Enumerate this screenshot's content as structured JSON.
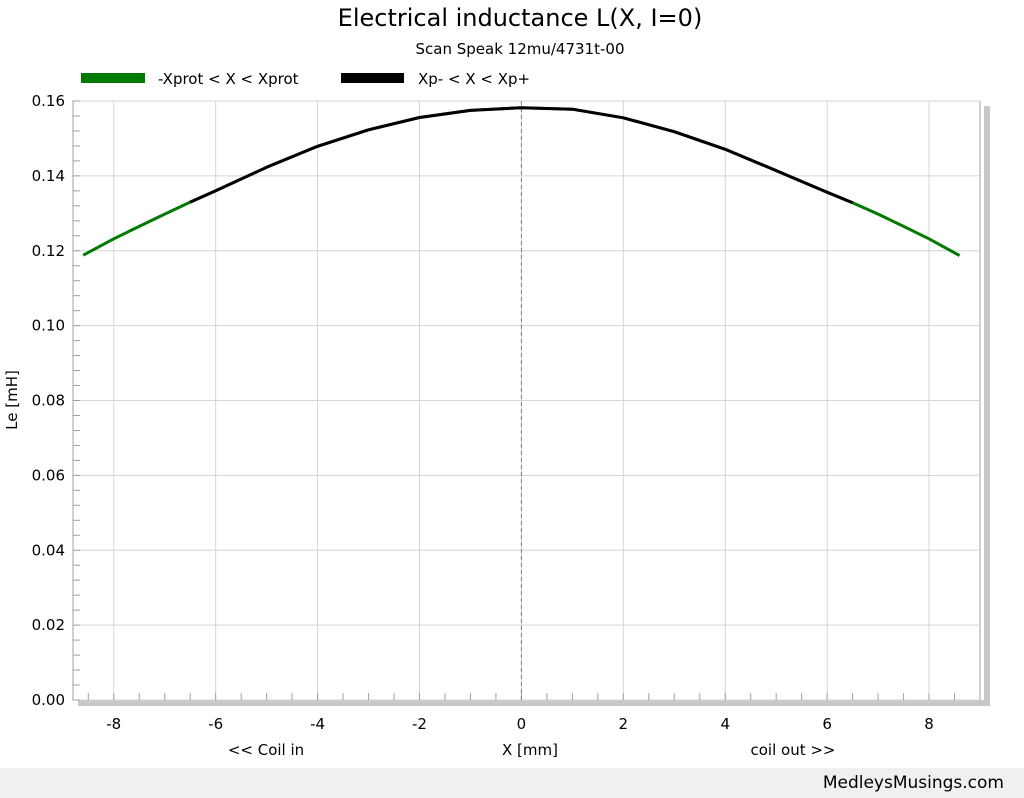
{
  "chart_data": {
    "type": "line",
    "title": "Electrical inductance L(X, I=0)",
    "subtitle": "Scan Speak 12mu/4731t-00",
    "xlabel": "X [mm]",
    "ylabel": "Le [mH]",
    "x_left_note": "<< Coil in",
    "x_right_note": "coil out >>",
    "xlim": [
      -8.8,
      9.0
    ],
    "ylim": [
      0,
      0.16
    ],
    "x_ticks": [
      -8,
      -6,
      -4,
      -2,
      0,
      2,
      4,
      6,
      8
    ],
    "x_tick_labels": [
      "-8",
      "-6",
      "-4",
      "-2",
      "0",
      "2",
      "4",
      "6",
      "8"
    ],
    "y_ticks": [
      0,
      0.02,
      0.04,
      0.06,
      0.08,
      0.1,
      0.12,
      0.14,
      0.16
    ],
    "y_tick_labels": [
      "0.00",
      "0.02",
      "0.04",
      "0.06",
      "0.08",
      "0.10",
      "0.12",
      "0.14",
      "0.16"
    ],
    "grid": true,
    "zero_line": true,
    "legend_position": "top-left",
    "series": [
      {
        "name": "-Xprot < X < Xprot",
        "color": "#007a00",
        "x": [
          -8.6,
          -8.0,
          -7.5,
          -7.0,
          -6.5,
          -6.0,
          -5.0,
          -4.0,
          -3.0,
          -2.0,
          -1.0,
          0.0,
          1.0,
          2.0,
          3.0,
          4.0,
          5.0,
          6.0,
          6.5,
          7.0,
          7.5,
          8.0,
          8.6
        ],
        "y": [
          0.1188,
          0.1232,
          0.1265,
          0.1298,
          0.133,
          0.136,
          0.1423,
          0.1479,
          0.1523,
          0.1556,
          0.1575,
          0.1582,
          0.1578,
          0.1555,
          0.1518,
          0.1471,
          0.1414,
          0.1356,
          0.1328,
          0.1298,
          0.1265,
          0.1232,
          0.1187
        ]
      },
      {
        "name": "Xp- < X < Xp+",
        "color": "#000000",
        "x": [
          -6.5,
          -6.0,
          -5.0,
          -4.0,
          -3.0,
          -2.0,
          -1.0,
          0.0,
          1.0,
          2.0,
          3.0,
          4.0,
          5.0,
          6.0,
          6.5
        ],
        "y": [
          0.133,
          0.136,
          0.1423,
          0.1479,
          0.1523,
          0.1556,
          0.1575,
          0.1582,
          0.1578,
          0.1555,
          0.1518,
          0.1471,
          0.1414,
          0.1356,
          0.1328
        ]
      }
    ]
  },
  "footer": {
    "watermark": "MedleysMusings.com"
  }
}
